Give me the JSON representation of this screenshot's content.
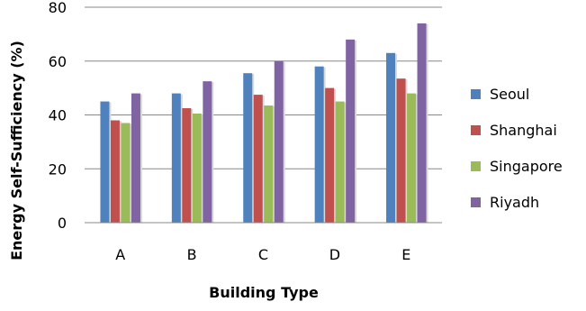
{
  "chart_data": {
    "type": "bar",
    "title": "",
    "xlabel": "Building Type",
    "ylabel": "Energy Self-Sufficiency (%)",
    "ylim": [
      0,
      80
    ],
    "yticks": [
      "0",
      "20",
      "40",
      "60",
      "80"
    ],
    "grid": "horizontal",
    "legend_position": "right",
    "categories": [
      "A",
      "B",
      "C",
      "D",
      "E"
    ],
    "series": [
      {
        "name": "Seoul",
        "color": "#4F81BD",
        "values": [
          45,
          48,
          55.5,
          58,
          63
        ]
      },
      {
        "name": "Shanghai",
        "color": "#C0504D",
        "values": [
          38,
          42.5,
          47.5,
          50,
          53.5
        ]
      },
      {
        "name": "Singapore",
        "color": "#9BBB59",
        "values": [
          37,
          40.5,
          43.5,
          45,
          48
        ]
      },
      {
        "name": "Riyadh",
        "color": "#8064A2",
        "values": [
          48,
          52.5,
          60,
          68,
          74
        ]
      }
    ]
  }
}
